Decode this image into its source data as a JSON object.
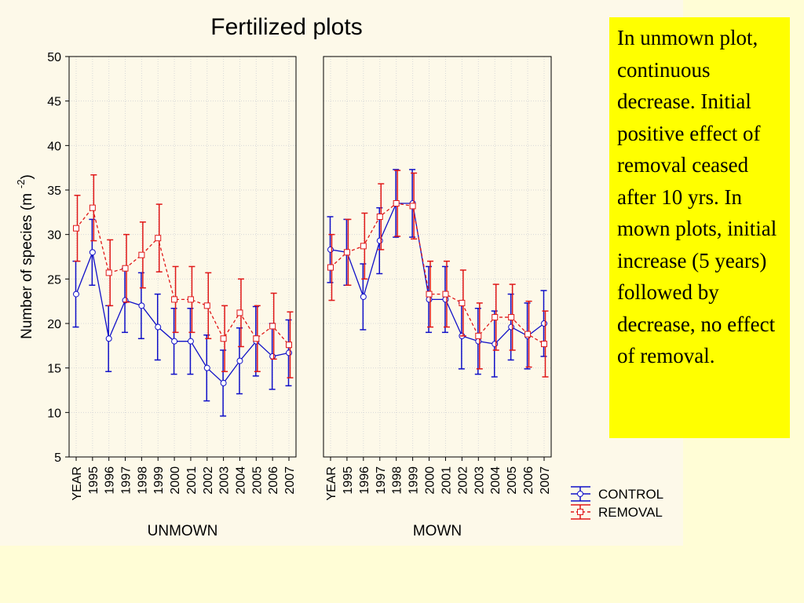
{
  "chart_data": [
    {
      "type": "line",
      "title": "Fertilized plots",
      "ylabel": "Number of species (m",
      "ylabel_exponent": "-2",
      "ylabel_end": ")",
      "xlabel": "UNMOWN",
      "categories": [
        "YEAR",
        "1995",
        "1996",
        "1997",
        "1998",
        "1999",
        "2000",
        "2001",
        "2002",
        "2003",
        "2004",
        "2005",
        "2006",
        "2007"
      ],
      "ylim": [
        5,
        50
      ],
      "yticks": [
        5,
        10,
        15,
        20,
        25,
        30,
        35,
        40,
        45,
        50
      ],
      "grid": true,
      "legend": "lower right",
      "series": [
        {
          "name": "CONTROL",
          "color": "#1010c8",
          "values": [
            23.3,
            28,
            18.3,
            22.6,
            22,
            19.6,
            18,
            18,
            15,
            13.3,
            15.8,
            18,
            16.3,
            16.7
          ],
          "errors": [
            3.7,
            3.7,
            3.7,
            3.6,
            3.7,
            3.7,
            3.7,
            3.7,
            3.7,
            3.7,
            3.7,
            3.9,
            3.7,
            3.7
          ]
        },
        {
          "name": "REMOVAL",
          "color": "#e01818",
          "values": [
            30.7,
            33,
            25.7,
            26.2,
            27.7,
            29.6,
            22.7,
            22.7,
            22,
            18.3,
            21.2,
            18.3,
            19.7,
            17.6
          ],
          "errors": [
            3.7,
            3.7,
            3.7,
            3.8,
            3.7,
            3.8,
            3.7,
            3.7,
            3.7,
            3.7,
            3.8,
            3.7,
            3.7,
            3.7
          ]
        }
      ]
    },
    {
      "type": "line",
      "xlabel": "MOWN",
      "categories": [
        "YEAR",
        "1995",
        "1996",
        "1997",
        "1998",
        "1999",
        "2000",
        "2001",
        "2002",
        "2003",
        "2004",
        "2005",
        "2006",
        "2007"
      ],
      "ylim": [
        5,
        50
      ],
      "yticks": [
        5,
        10,
        15,
        20,
        25,
        30,
        35,
        40,
        45,
        50
      ],
      "grid": true,
      "series": [
        {
          "name": "CONTROL",
          "color": "#1010c8",
          "values": [
            28.3,
            28,
            23,
            29.3,
            33.5,
            33.5,
            22.7,
            22.7,
            18.6,
            18,
            17.7,
            19.6,
            18.6,
            20
          ],
          "errors": [
            3.7,
            3.7,
            3.7,
            3.7,
            3.8,
            3.8,
            3.7,
            3.7,
            3.7,
            3.7,
            3.7,
            3.7,
            3.7,
            3.7
          ]
        },
        {
          "name": "REMOVAL",
          "color": "#e01818",
          "values": [
            26.3,
            28,
            28.7,
            32,
            33.5,
            33.2,
            23.3,
            23.3,
            22.3,
            18.6,
            20.7,
            20.7,
            18.8,
            17.7
          ],
          "errors": [
            3.7,
            3.7,
            3.7,
            3.7,
            3.7,
            3.7,
            3.7,
            3.7,
            3.7,
            3.7,
            3.7,
            3.7,
            3.7,
            3.7
          ]
        }
      ]
    }
  ],
  "annotation": "In unmown plot, continuous decrease. Initial positive effect of removal ceased after 10 yrs. In mown plots, initial increase (5 years) followed by decrease, no effect of removal."
}
